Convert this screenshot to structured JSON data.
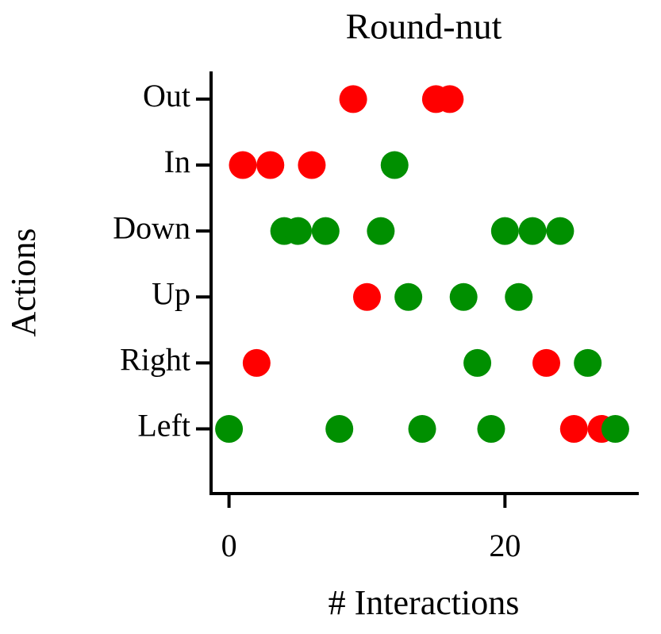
{
  "chart_data": {
    "type": "strip",
    "title": "Round-nut",
    "xlabel": "# Interactions",
    "ylabel": "Actions",
    "categories": [
      "Left",
      "Right",
      "Up",
      "Down",
      "In",
      "Out"
    ],
    "xlim": [
      -1.3,
      29.7
    ],
    "xticks": [
      0,
      20
    ],
    "ylim": [
      -0.98,
      5.42
    ],
    "series": [
      {
        "color": "#ff0000",
        "x": [
          9,
          15,
          16,
          1,
          3,
          6,
          10,
          2,
          23,
          25,
          27
        ],
        "y": [
          5,
          5,
          5,
          4,
          4,
          4,
          2,
          1,
          1,
          0,
          0
        ]
      },
      {
        "color": "#008f00",
        "x": [
          12,
          4,
          5,
          7,
          11,
          20,
          22,
          24,
          13,
          17,
          21,
          18,
          26,
          0,
          8,
          14,
          19,
          28
        ],
        "y": [
          4,
          3,
          3,
          3,
          3,
          3,
          3,
          3,
          2,
          2,
          2,
          1,
          1,
          0,
          0,
          0,
          0,
          0
        ]
      }
    ]
  }
}
